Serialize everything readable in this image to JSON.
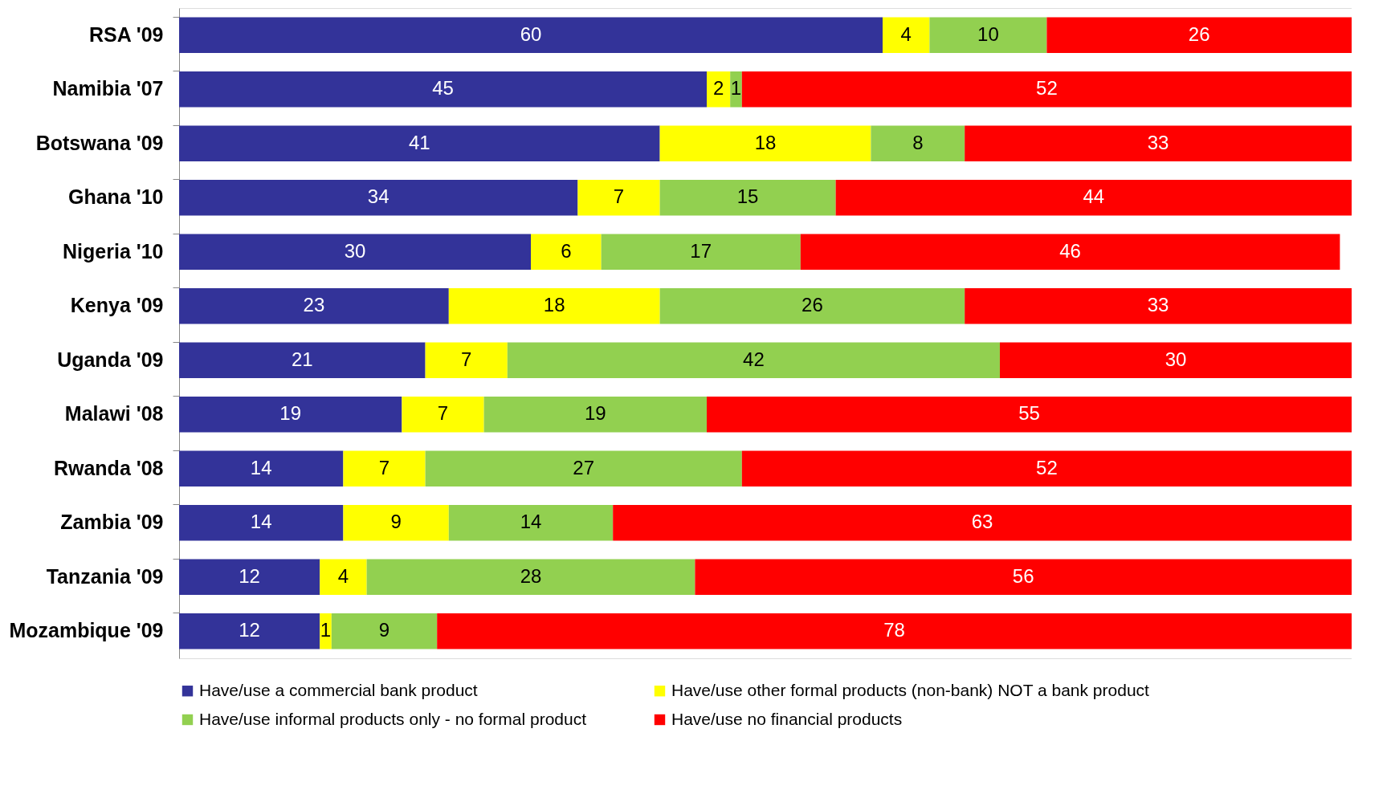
{
  "chart_data": {
    "type": "bar",
    "orientation": "horizontal",
    "stacked": true,
    "data_labels": true,
    "grid": false,
    "legend": "bottom",
    "tick_labels": "y",
    "categories": [
      "RSA '09",
      "Namibia '07",
      "Botswana '09",
      "Ghana '10",
      "Nigeria '10",
      "Kenya '09",
      "Uganda '09",
      "Malawi '08",
      "Rwanda '08",
      "Zambia '09",
      "Tanzania '09",
      "Mozambique '09"
    ],
    "series": [
      {
        "name": "Have/use a commercial bank product",
        "color": "#333399",
        "values": [
          60,
          45,
          41,
          34,
          30,
          23,
          21,
          19,
          14,
          14,
          12,
          12
        ]
      },
      {
        "name": "Have/use other formal products (non-bank) NOT a bank product",
        "color": "#ffff00",
        "values": [
          4,
          2,
          18,
          7,
          6,
          18,
          7,
          7,
          7,
          9,
          4,
          1
        ]
      },
      {
        "name": "Have/use informal products only - no formal product",
        "color": "#92d050",
        "values": [
          10,
          1,
          8,
          15,
          17,
          26,
          42,
          19,
          27,
          14,
          28,
          9
        ]
      },
      {
        "name": "Have/use no financial products",
        "color": "#ff0000",
        "values": [
          26,
          52,
          33,
          44,
          46,
          33,
          30,
          55,
          52,
          63,
          56,
          78
        ]
      }
    ]
  }
}
